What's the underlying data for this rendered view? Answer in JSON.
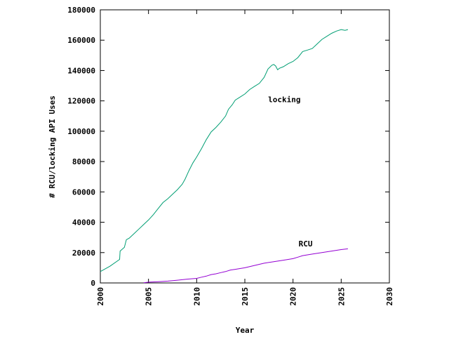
{
  "chart_data": {
    "type": "line",
    "title": "",
    "xlabel": "Year",
    "ylabel": "# RCU/locking API Uses",
    "xlim": [
      2000,
      2030
    ],
    "ylim": [
      0,
      180000
    ],
    "x_ticks": [
      2000,
      2005,
      2010,
      2015,
      2020,
      2025,
      2030
    ],
    "y_ticks": [
      0,
      20000,
      40000,
      60000,
      80000,
      100000,
      120000,
      140000,
      160000,
      180000
    ],
    "grid": false,
    "legend": "none",
    "series": [
      {
        "name": "locking",
        "color": "#009e73",
        "points": [
          [
            2000.0,
            7500
          ],
          [
            2001.0,
            11000
          ],
          [
            2002.0,
            15500
          ],
          [
            2002.05,
            21000
          ],
          [
            2002.5,
            23500
          ],
          [
            2002.7,
            28500
          ],
          [
            2003.0,
            29500
          ],
          [
            2003.5,
            32500
          ],
          [
            2004.0,
            35500
          ],
          [
            2004.5,
            38500
          ],
          [
            2005.0,
            41500
          ],
          [
            2005.5,
            45000
          ],
          [
            2006.0,
            49000
          ],
          [
            2006.5,
            53000
          ],
          [
            2007.0,
            55500
          ],
          [
            2007.5,
            58500
          ],
          [
            2008.0,
            61500
          ],
          [
            2008.5,
            65000
          ],
          [
            2008.8,
            68500
          ],
          [
            2009.2,
            74000
          ],
          [
            2009.6,
            79000
          ],
          [
            2010.0,
            83000
          ],
          [
            2010.5,
            88500
          ],
          [
            2011.0,
            94500
          ],
          [
            2011.5,
            99500
          ],
          [
            2012.0,
            102500
          ],
          [
            2012.5,
            106000
          ],
          [
            2013.0,
            110000
          ],
          [
            2013.3,
            114500
          ],
          [
            2013.7,
            117500
          ],
          [
            2014.0,
            120500
          ],
          [
            2014.5,
            122500
          ],
          [
            2015.0,
            124500
          ],
          [
            2015.5,
            127500
          ],
          [
            2016.0,
            129500
          ],
          [
            2016.5,
            131500
          ],
          [
            2017.0,
            135500
          ],
          [
            2017.4,
            141000
          ],
          [
            2017.8,
            143500
          ],
          [
            2018.0,
            144000
          ],
          [
            2018.2,
            143000
          ],
          [
            2018.4,
            140500
          ],
          [
            2018.6,
            141500
          ],
          [
            2019.0,
            142500
          ],
          [
            2019.5,
            144500
          ],
          [
            2020.0,
            146000
          ],
          [
            2020.5,
            148500
          ],
          [
            2021.0,
            152500
          ],
          [
            2021.5,
            153500
          ],
          [
            2022.0,
            154500
          ],
          [
            2022.5,
            157500
          ],
          [
            2023.0,
            160500
          ],
          [
            2023.5,
            162500
          ],
          [
            2024.0,
            164500
          ],
          [
            2024.5,
            166000
          ],
          [
            2025.0,
            167000
          ],
          [
            2025.4,
            166500
          ],
          [
            2025.7,
            167000
          ]
        ],
        "label": {
          "text": "locking",
          "x": 2019.1,
          "y": 121000
        }
      },
      {
        "name": "RCU",
        "color": "#9400d3",
        "points": [
          [
            2004.5,
            100
          ],
          [
            2005.0,
            500
          ],
          [
            2006.0,
            800
          ],
          [
            2007.0,
            1200
          ],
          [
            2008.0,
            1800
          ],
          [
            2009.0,
            2500
          ],
          [
            2010.0,
            3000
          ],
          [
            2010.5,
            3800
          ],
          [
            2011.0,
            4500
          ],
          [
            2011.5,
            5500
          ],
          [
            2012.0,
            6000
          ],
          [
            2012.5,
            6800
          ],
          [
            2013.0,
            7500
          ],
          [
            2013.5,
            8500
          ],
          [
            2014.0,
            9000
          ],
          [
            2014.5,
            9500
          ],
          [
            2015.0,
            10000
          ],
          [
            2016.0,
            11500
          ],
          [
            2017.0,
            13000
          ],
          [
            2018.0,
            14000
          ],
          [
            2019.0,
            15000
          ],
          [
            2020.0,
            16000
          ],
          [
            2020.5,
            17000
          ],
          [
            2021.0,
            18000
          ],
          [
            2022.0,
            19000
          ],
          [
            2023.0,
            20000
          ],
          [
            2024.0,
            21000
          ],
          [
            2025.0,
            22000
          ],
          [
            2025.7,
            22500
          ]
        ],
        "label": {
          "text": "RCU",
          "x": 2021.3,
          "y": 26000
        }
      }
    ]
  }
}
